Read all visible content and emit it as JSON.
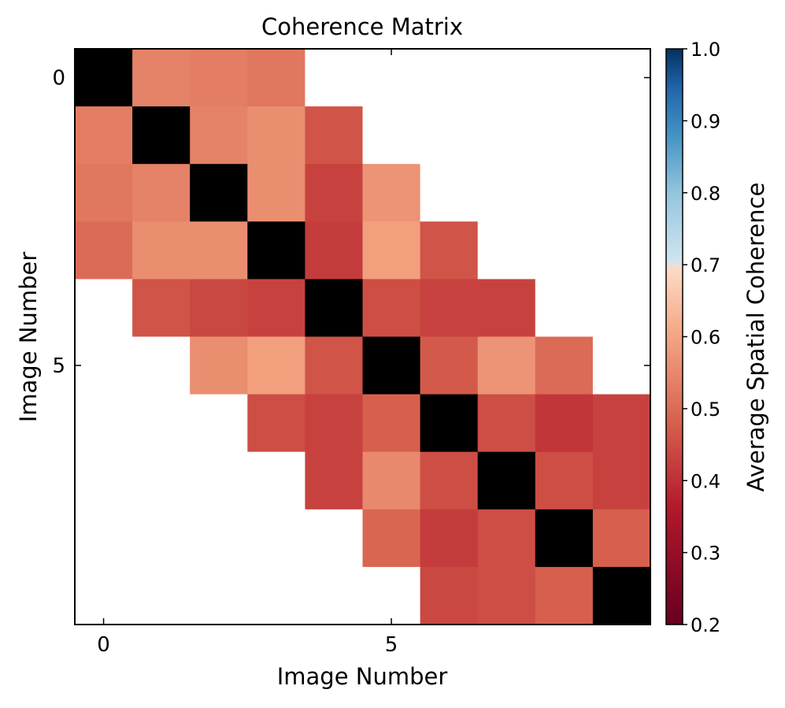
{
  "chart_data": {
    "type": "heatmap",
    "title": "Coherence Matrix",
    "xlabel": "Image Number",
    "ylabel": "Image Number",
    "x_ticks": [
      0,
      5
    ],
    "y_ticks": [
      0,
      5
    ],
    "size": 10,
    "diagonal_color": "#000000",
    "missing_color": "#ffffff",
    "matrix": [
      [
        null,
        0.54,
        0.53,
        0.52,
        null,
        null,
        null,
        null,
        null,
        null
      ],
      [
        0.53,
        null,
        0.54,
        0.56,
        0.46,
        null,
        null,
        null,
        null,
        null
      ],
      [
        0.52,
        0.54,
        null,
        0.56,
        0.43,
        0.57,
        null,
        null,
        null,
        null
      ],
      [
        0.5,
        0.56,
        0.56,
        null,
        0.42,
        0.59,
        0.46,
        null,
        null,
        null
      ],
      [
        null,
        0.46,
        0.44,
        0.43,
        null,
        0.45,
        0.43,
        0.43,
        null,
        null
      ],
      [
        null,
        null,
        0.56,
        0.59,
        0.46,
        null,
        0.47,
        0.57,
        0.5,
        null
      ],
      [
        null,
        null,
        null,
        0.45,
        0.43,
        0.48,
        null,
        0.45,
        0.41,
        0.43
      ],
      [
        null,
        null,
        null,
        null,
        0.43,
        0.55,
        0.45,
        null,
        0.45,
        0.43
      ],
      [
        null,
        null,
        null,
        null,
        null,
        0.49,
        0.42,
        0.45,
        null,
        0.48
      ],
      [
        null,
        null,
        null,
        null,
        null,
        null,
        0.44,
        0.45,
        0.48,
        null
      ]
    ],
    "colorbar": {
      "label": "Average Spatial Coherence",
      "min": 0.2,
      "max": 1.0,
      "ticks": [
        "0.2",
        "0.3",
        "0.4",
        "0.5",
        "0.6",
        "0.7",
        "0.8",
        "0.9",
        "1.0"
      ],
      "colormap": "RdBu",
      "stops": [
        {
          "v": 0.0,
          "c": "#67001f"
        },
        {
          "v": 0.2,
          "c": "#b2182b"
        },
        {
          "v": 0.35,
          "c": "#d6604d"
        },
        {
          "v": 0.5,
          "c": "#f4a582"
        },
        {
          "v": 0.62,
          "c": "#fddbc7"
        },
        {
          "v": 0.63,
          "c": "#d1e5f0"
        },
        {
          "v": 0.75,
          "c": "#92c5de"
        },
        {
          "v": 0.85,
          "c": "#4393c3"
        },
        {
          "v": 0.93,
          "c": "#2166ac"
        },
        {
          "v": 1.0,
          "c": "#053061"
        }
      ]
    }
  }
}
